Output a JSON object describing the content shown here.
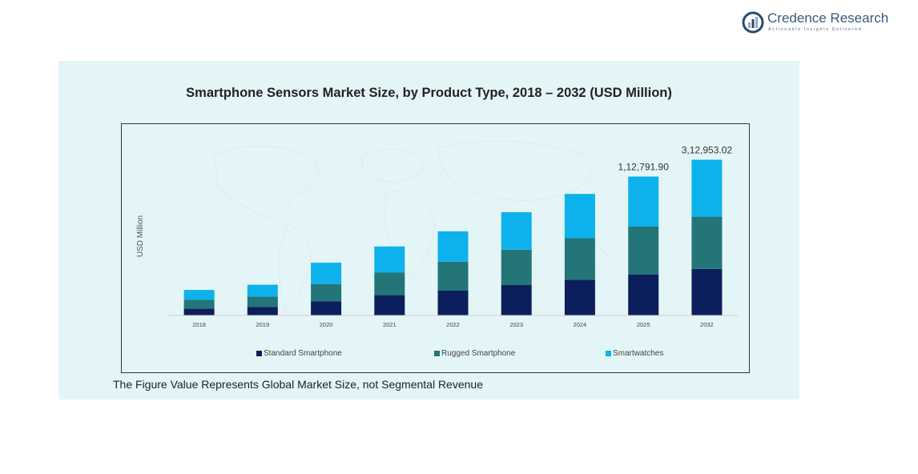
{
  "logo": {
    "name": "Credence Research",
    "tagline": "Actionable Insights Delivered",
    "colors": {
      "mark_dark": "#2c4a6b",
      "mark_light": "#8fb0c9"
    }
  },
  "footnote": "The Figure Value Represents Global Market Size, not Segmental Revenue",
  "chart_data": {
    "type": "bar",
    "stacked": true,
    "title": "Smartphone Sensors Market Size, by Product Type, 2018 – 2032 (USD Million)",
    "xlabel": "",
    "ylabel": "USD Million",
    "ylim": [
      0,
      312953.02
    ],
    "grid": false,
    "legend_position": "bottom",
    "categories": [
      "2018",
      "2019",
      "2020",
      "2021",
      "2022",
      "2023",
      "2024",
      "2025",
      "2032"
    ],
    "series": [
      {
        "name": "Standard Smartphone",
        "color": "#0b1f5c",
        "values": [
          13700,
          17200,
          28200,
          40300,
          49200,
          60300,
          70800,
          81500,
          92400
        ]
      },
      {
        "name": "Rugged Smartphone",
        "color": "#237578",
        "values": [
          17700,
          20500,
          34300,
          44700,
          57400,
          70200,
          82500,
          94900,
          103600
        ]
      },
      {
        "name": "Smartwatches",
        "color": "#0db2ec",
        "values": [
          19300,
          23300,
          42200,
          52000,
          60300,
          74400,
          87900,
          99300,
          112953
        ]
      }
    ],
    "annotations": [
      {
        "category": "2025",
        "text": "1,12,791.90"
      },
      {
        "category": "2032",
        "text": "3,12,953.02"
      }
    ]
  }
}
